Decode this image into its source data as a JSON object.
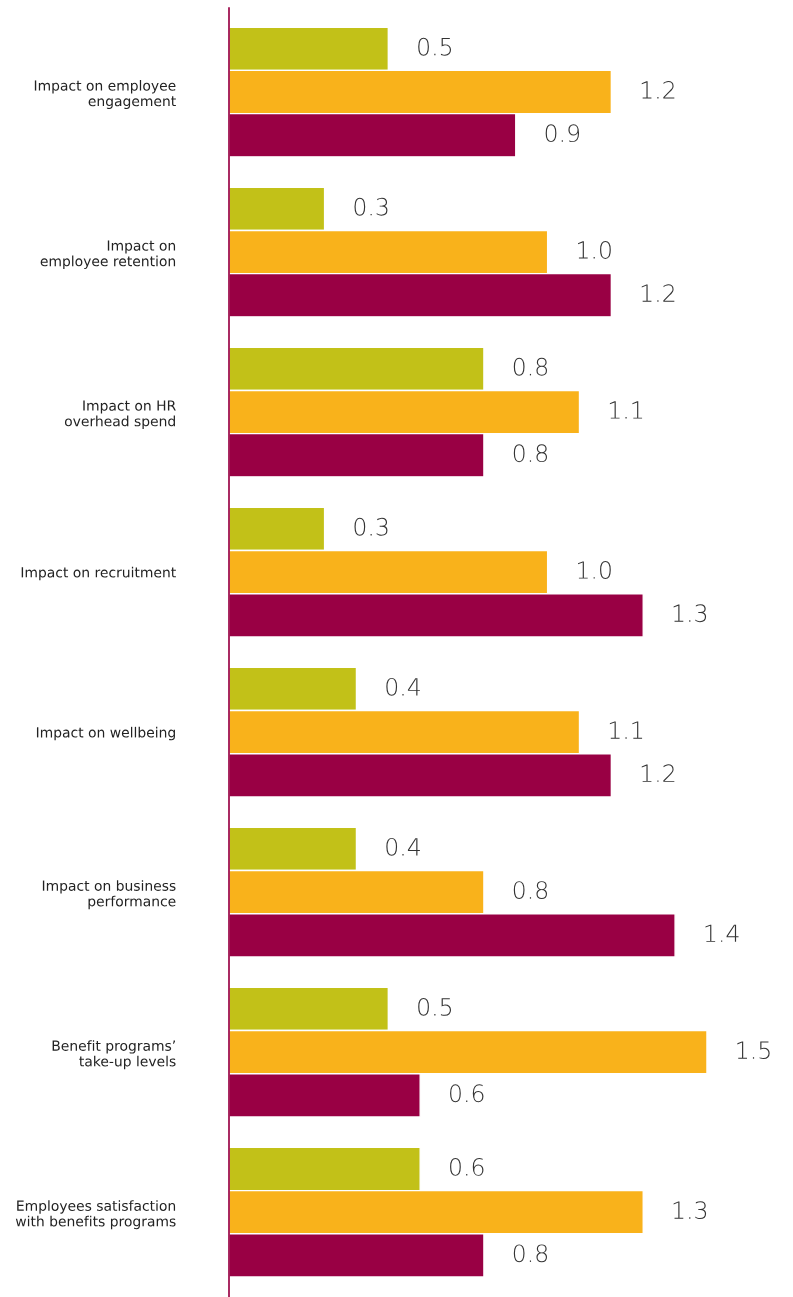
{
  "chart_data": {
    "type": "bar",
    "orientation": "horizontal",
    "legend": false,
    "grid": false,
    "categories": [
      "Impact on employee\nengagement",
      "Impact on\nemployee retention",
      "Impact on HR\noverhead spend",
      "Impact on recruitment",
      "Impact on wellbeing",
      "Impact on business\nperformance",
      "Benefit programs’\ntake-up levels",
      "Employees satisfaction\nwith benefits programs"
    ],
    "series": [
      {
        "color": "#c2c118",
        "values": [
          0.5,
          0.3,
          0.8,
          0.3,
          0.4,
          0.4,
          0.5,
          0.6
        ],
        "value_labels": [
          "0.5",
          "0.3",
          "0.8",
          "0.3",
          "0.4",
          "0.4",
          "0.5",
          "0.6"
        ]
      },
      {
        "color": "#f9b21b",
        "values": [
          1.2,
          1.0,
          1.1,
          1.0,
          1.1,
          0.8,
          1.5,
          1.3
        ],
        "value_labels": [
          "1.2",
          "1.0",
          "1.1",
          "1.0",
          "1.1",
          "0.8",
          "1.5",
          "1.3"
        ]
      },
      {
        "color": "#990044",
        "values": [
          0.9,
          1.2,
          0.8,
          1.3,
          1.2,
          1.4,
          0.6,
          0.8
        ],
        "value_labels": [
          "0.9",
          "1.2",
          "0.8",
          "1.3",
          "1.2",
          "1.4",
          "0.6",
          "0.8"
        ]
      }
    ]
  }
}
